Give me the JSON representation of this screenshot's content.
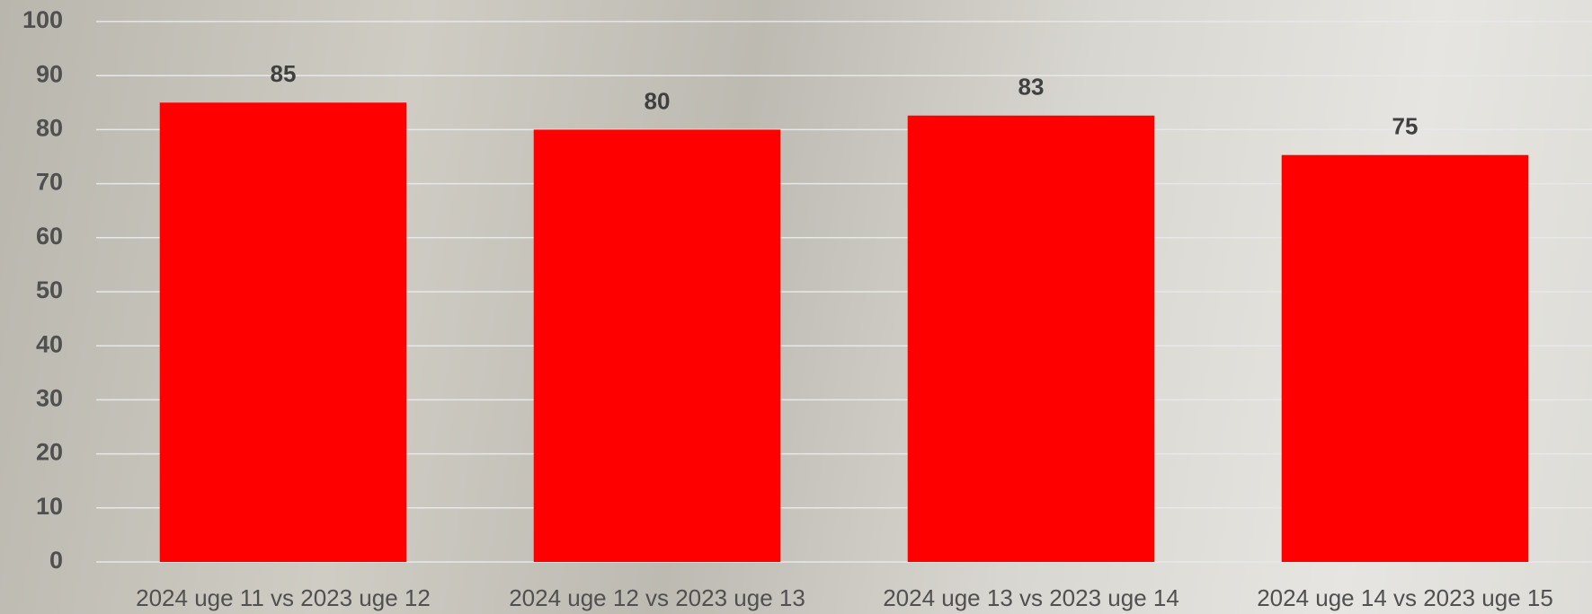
{
  "chart_data": {
    "type": "bar",
    "categories": [
      "2024 uge 11 vs 2023 uge 12",
      "2024 uge 12 vs 2023 uge 13",
      "2024 uge 13 vs 2023 uge 14",
      "2024 uge 14 vs 2023 uge 15"
    ],
    "values": [
      85,
      80,
      82.6,
      75.3
    ],
    "value_labels": [
      "85",
      "80",
      "83",
      "75"
    ],
    "color": "#ff0000",
    "ylim": [
      0,
      100
    ],
    "yticks": [
      0,
      10,
      20,
      30,
      40,
      50,
      60,
      70,
      80,
      90,
      100
    ],
    "grid": true
  }
}
